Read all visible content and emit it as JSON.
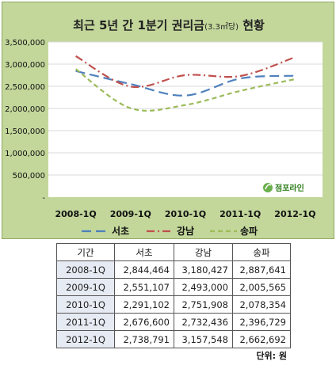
{
  "chart_data": {
    "type": "line",
    "title": "최근 5년 간 1분기 권리금",
    "title_suffix": "(3.3㎡당)",
    "title_end": " 현황",
    "categories": [
      "2008-1Q",
      "2009-1Q",
      "2010-1Q",
      "2011-1Q",
      "2012-1Q"
    ],
    "ylim": [
      0,
      3500000
    ],
    "yticks": [
      "3,500,000",
      "3,000,000",
      "2,500,000",
      "2,000,000",
      "1,500,000",
      "1,000,000",
      "500,000",
      "-"
    ],
    "ytick_values": [
      3500000,
      3000000,
      2500000,
      2000000,
      1500000,
      1000000,
      500000,
      0
    ],
    "grid": true,
    "legend_position": "bottom",
    "series": [
      {
        "name": "서초",
        "color": "#4f81bd",
        "dash": "long-dash",
        "values": [
          2844464,
          2551107,
          2291102,
          2676600,
          2738791
        ]
      },
      {
        "name": "강남",
        "color": "#c0504d",
        "dash": "dash-dot",
        "values": [
          3180427,
          2493000,
          2751908,
          2732436,
          3157548
        ]
      },
      {
        "name": "송파",
        "color": "#9bbb59",
        "dash": "dash",
        "values": [
          2887641,
          2005565,
          2078354,
          2396729,
          2662692
        ]
      }
    ]
  },
  "logo": {
    "text": "점포라인",
    "icon": "leaf-icon"
  },
  "table": {
    "headers": [
      "기간",
      "서초",
      "강남",
      "송파"
    ],
    "rows": [
      [
        "2008-1Q",
        "2,844,464",
        "3,180,427",
        "2,887,641"
      ],
      [
        "2009-1Q",
        "2,551,107",
        "2,493,000",
        "2,005,565"
      ],
      [
        "2010-1Q",
        "2,291,102",
        "2,751,908",
        "2,078,354"
      ],
      [
        "2011-1Q",
        "2,676,600",
        "2,732,436",
        "2,396,729"
      ],
      [
        "2012-1Q",
        "2,738,791",
        "3,157,548",
        "2,662,692"
      ]
    ]
  },
  "unit_note": "단위: 원"
}
